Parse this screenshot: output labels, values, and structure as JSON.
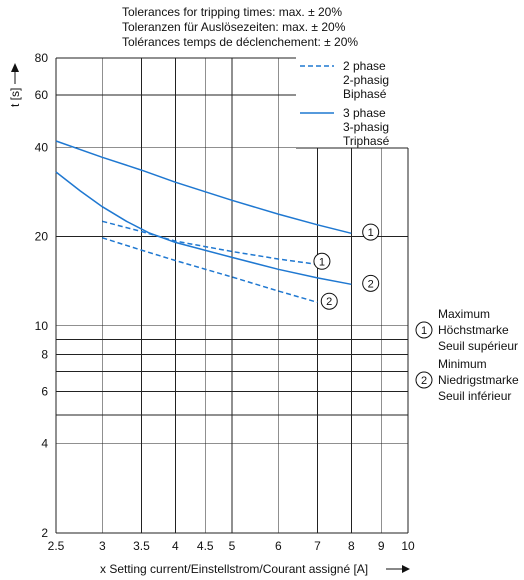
{
  "notes": [
    "Tolerances for tripping times: max. ± 20%",
    "Toleranzen für Auslösezeiten: max. ± 20%",
    "Tolérances temps de déclenchement: ± 20%"
  ],
  "chart_data": {
    "type": "line",
    "xscale": "log",
    "yscale": "log",
    "xlim": [
      2.5,
      10
    ],
    "ylim": [
      2,
      80
    ],
    "xlabel": "x Setting current/Einstellstrom/Courant assigné [A]",
    "ylabel": "t [s]",
    "x_ticks": [
      2.5,
      3,
      3.5,
      4,
      4.5,
      5,
      6,
      7,
      8,
      9,
      10
    ],
    "y_ticks": [
      2,
      4,
      6,
      8,
      10,
      20,
      40,
      60,
      80
    ],
    "y_grid_extra": [
      5,
      7,
      9
    ],
    "grid": true,
    "colors": {
      "curve": "#1f78d1",
      "grid": "#222222"
    },
    "legend": [
      {
        "label": "2 phase\n2-phasig\nBiphasé",
        "style": "dashed"
      },
      {
        "label": "3 phase\n3-phasig\nTriphasé",
        "style": "solid"
      }
    ],
    "series": [
      {
        "phase": "3",
        "style": "solid",
        "marker": "1",
        "x": [
          2.5,
          3,
          3.5,
          4,
          5,
          6,
          7,
          8
        ],
        "y": [
          42,
          37,
          33.5,
          30.5,
          26.5,
          23.8,
          21.9,
          20.5
        ]
      },
      {
        "phase": "3",
        "style": "solid",
        "marker": "2",
        "x": [
          2.5,
          2.75,
          3,
          3.3,
          3.6,
          4,
          5,
          6,
          7,
          8
        ],
        "y": [
          33,
          28.5,
          25.2,
          22.5,
          20.6,
          19.1,
          17.0,
          15.5,
          14.5,
          13.8
        ]
      },
      {
        "phase": "2",
        "style": "dashed",
        "marker": "1",
        "x": [
          3,
          3.5,
          4,
          5,
          6,
          7
        ],
        "y": [
          22.5,
          20.8,
          19.3,
          17.8,
          16.8,
          16.1
        ]
      },
      {
        "phase": "2",
        "style": "dashed",
        "marker": "2",
        "x": [
          3,
          3.5,
          4,
          5,
          6,
          7
        ],
        "y": [
          19.8,
          18.0,
          16.6,
          14.6,
          13.1,
          12.0
        ]
      }
    ],
    "markers": [
      {
        "label": "1",
        "x": 8.3,
        "y": 20.7
      },
      {
        "label": "2",
        "x": 8.3,
        "y": 13.9
      },
      {
        "label": "1",
        "x": 6.85,
        "y": 16.5
      },
      {
        "label": "2",
        "x": 7.05,
        "y": 12.1
      }
    ],
    "marker_legend": [
      {
        "label": "1",
        "lines": [
          "Maximum",
          "Höchstmarke",
          "Seuil supérieur"
        ]
      },
      {
        "label": "2",
        "lines": [
          "Minimum",
          "Niedrigstmarke",
          "Seuil inférieur"
        ]
      }
    ]
  }
}
